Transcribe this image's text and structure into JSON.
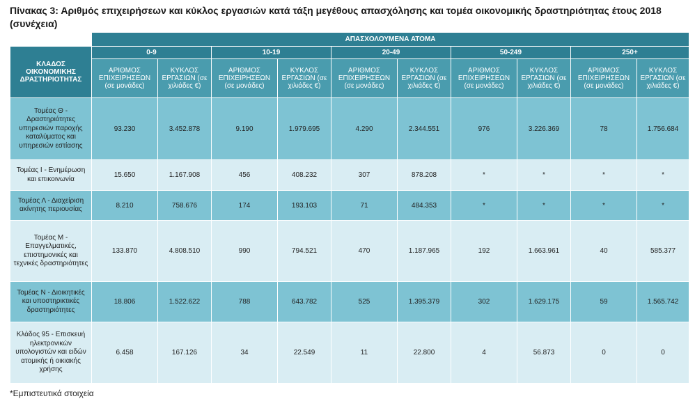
{
  "title": "Πίνακας 3: Αριθμός επιχειρήσεων και κύκλος εργασιών κατά τάξη μεγέθους απασχόλησης  και τομέα οικονομικής δραστηριότητας έτους 2018 (συνέχεια)",
  "header": {
    "sector_label": "ΚΛΑΔΟΣ ΟΙΚΟΝΟΜΙΚΗΣ ΔΡΑΣΤΗΡΙΟΤΗΤΑΣ",
    "employed_label": "ΑΠΑΣΧΟΛΟΥΜΕΝΑ ΑΤΟΜΑ",
    "size_classes": [
      "0-9",
      "10-19",
      "20-49",
      "50-249",
      "250+"
    ],
    "col_enterprises": "ΑΡΙΘΜΟΣ ΕΠΙΧΕΙΡΗΣΕΩΝ (σε μονάδες)",
    "col_turnover": "ΚΥΚΛΟΣ ΕΡΓΑΣΙΩΝ (σε χιλιάδες €)"
  },
  "rows": [
    {
      "sector": "Τομέας Θ - Δραστηριότητες υπηρεσιών παροχής καταλύματος και υπηρεσιών εστίασης",
      "values": [
        "93.230",
        "3.452.878",
        "9.190",
        "1.979.695",
        "4.290",
        "2.344.551",
        "976",
        "3.226.369",
        "78",
        "1.756.684"
      ]
    },
    {
      "sector": "Τομέας Ι - Ενημέρωση και επικοινωνία",
      "values": [
        "15.650",
        "1.167.908",
        "456",
        "408.232",
        "307",
        "878.208",
        "*",
        "*",
        "*",
        "*"
      ]
    },
    {
      "sector": "Τομέας Λ - Διαχείριση ακίνητης περιουσίας",
      "values": [
        "8.210",
        "758.676",
        "174",
        "193.103",
        "71",
        "484.353",
        "*",
        "*",
        "*",
        "*"
      ]
    },
    {
      "sector": "Τομέας Μ - Επαγγελματικές, επιστημονικές και τεχνικές δραστηριότητες",
      "values": [
        "133.870",
        "4.808.510",
        "990",
        "794.521",
        "470",
        "1.187.965",
        "192",
        "1.663.961",
        "40",
        "585.377"
      ]
    },
    {
      "sector": "Τομέας Ν - Διοικητικές και υποστηρικτικές δραστηριότητες",
      "values": [
        "18.806",
        "1.522.622",
        "788",
        "643.782",
        "525",
        "1.395.379",
        "302",
        "1.629.175",
        "59",
        "1.565.742"
      ]
    },
    {
      "sector": "Κλάδος 95 - Επισκευή ηλεκτρονικών υπολογιστών και ειδών ατομικής ή οικιακής χρήσης",
      "values": [
        "6.458",
        "167.126",
        "34",
        "22.549",
        "11",
        "22.800",
        "4",
        "56.873",
        "0",
        "0"
      ]
    }
  ],
  "footnote": "*Εμπιστευτικά στοιχεία"
}
